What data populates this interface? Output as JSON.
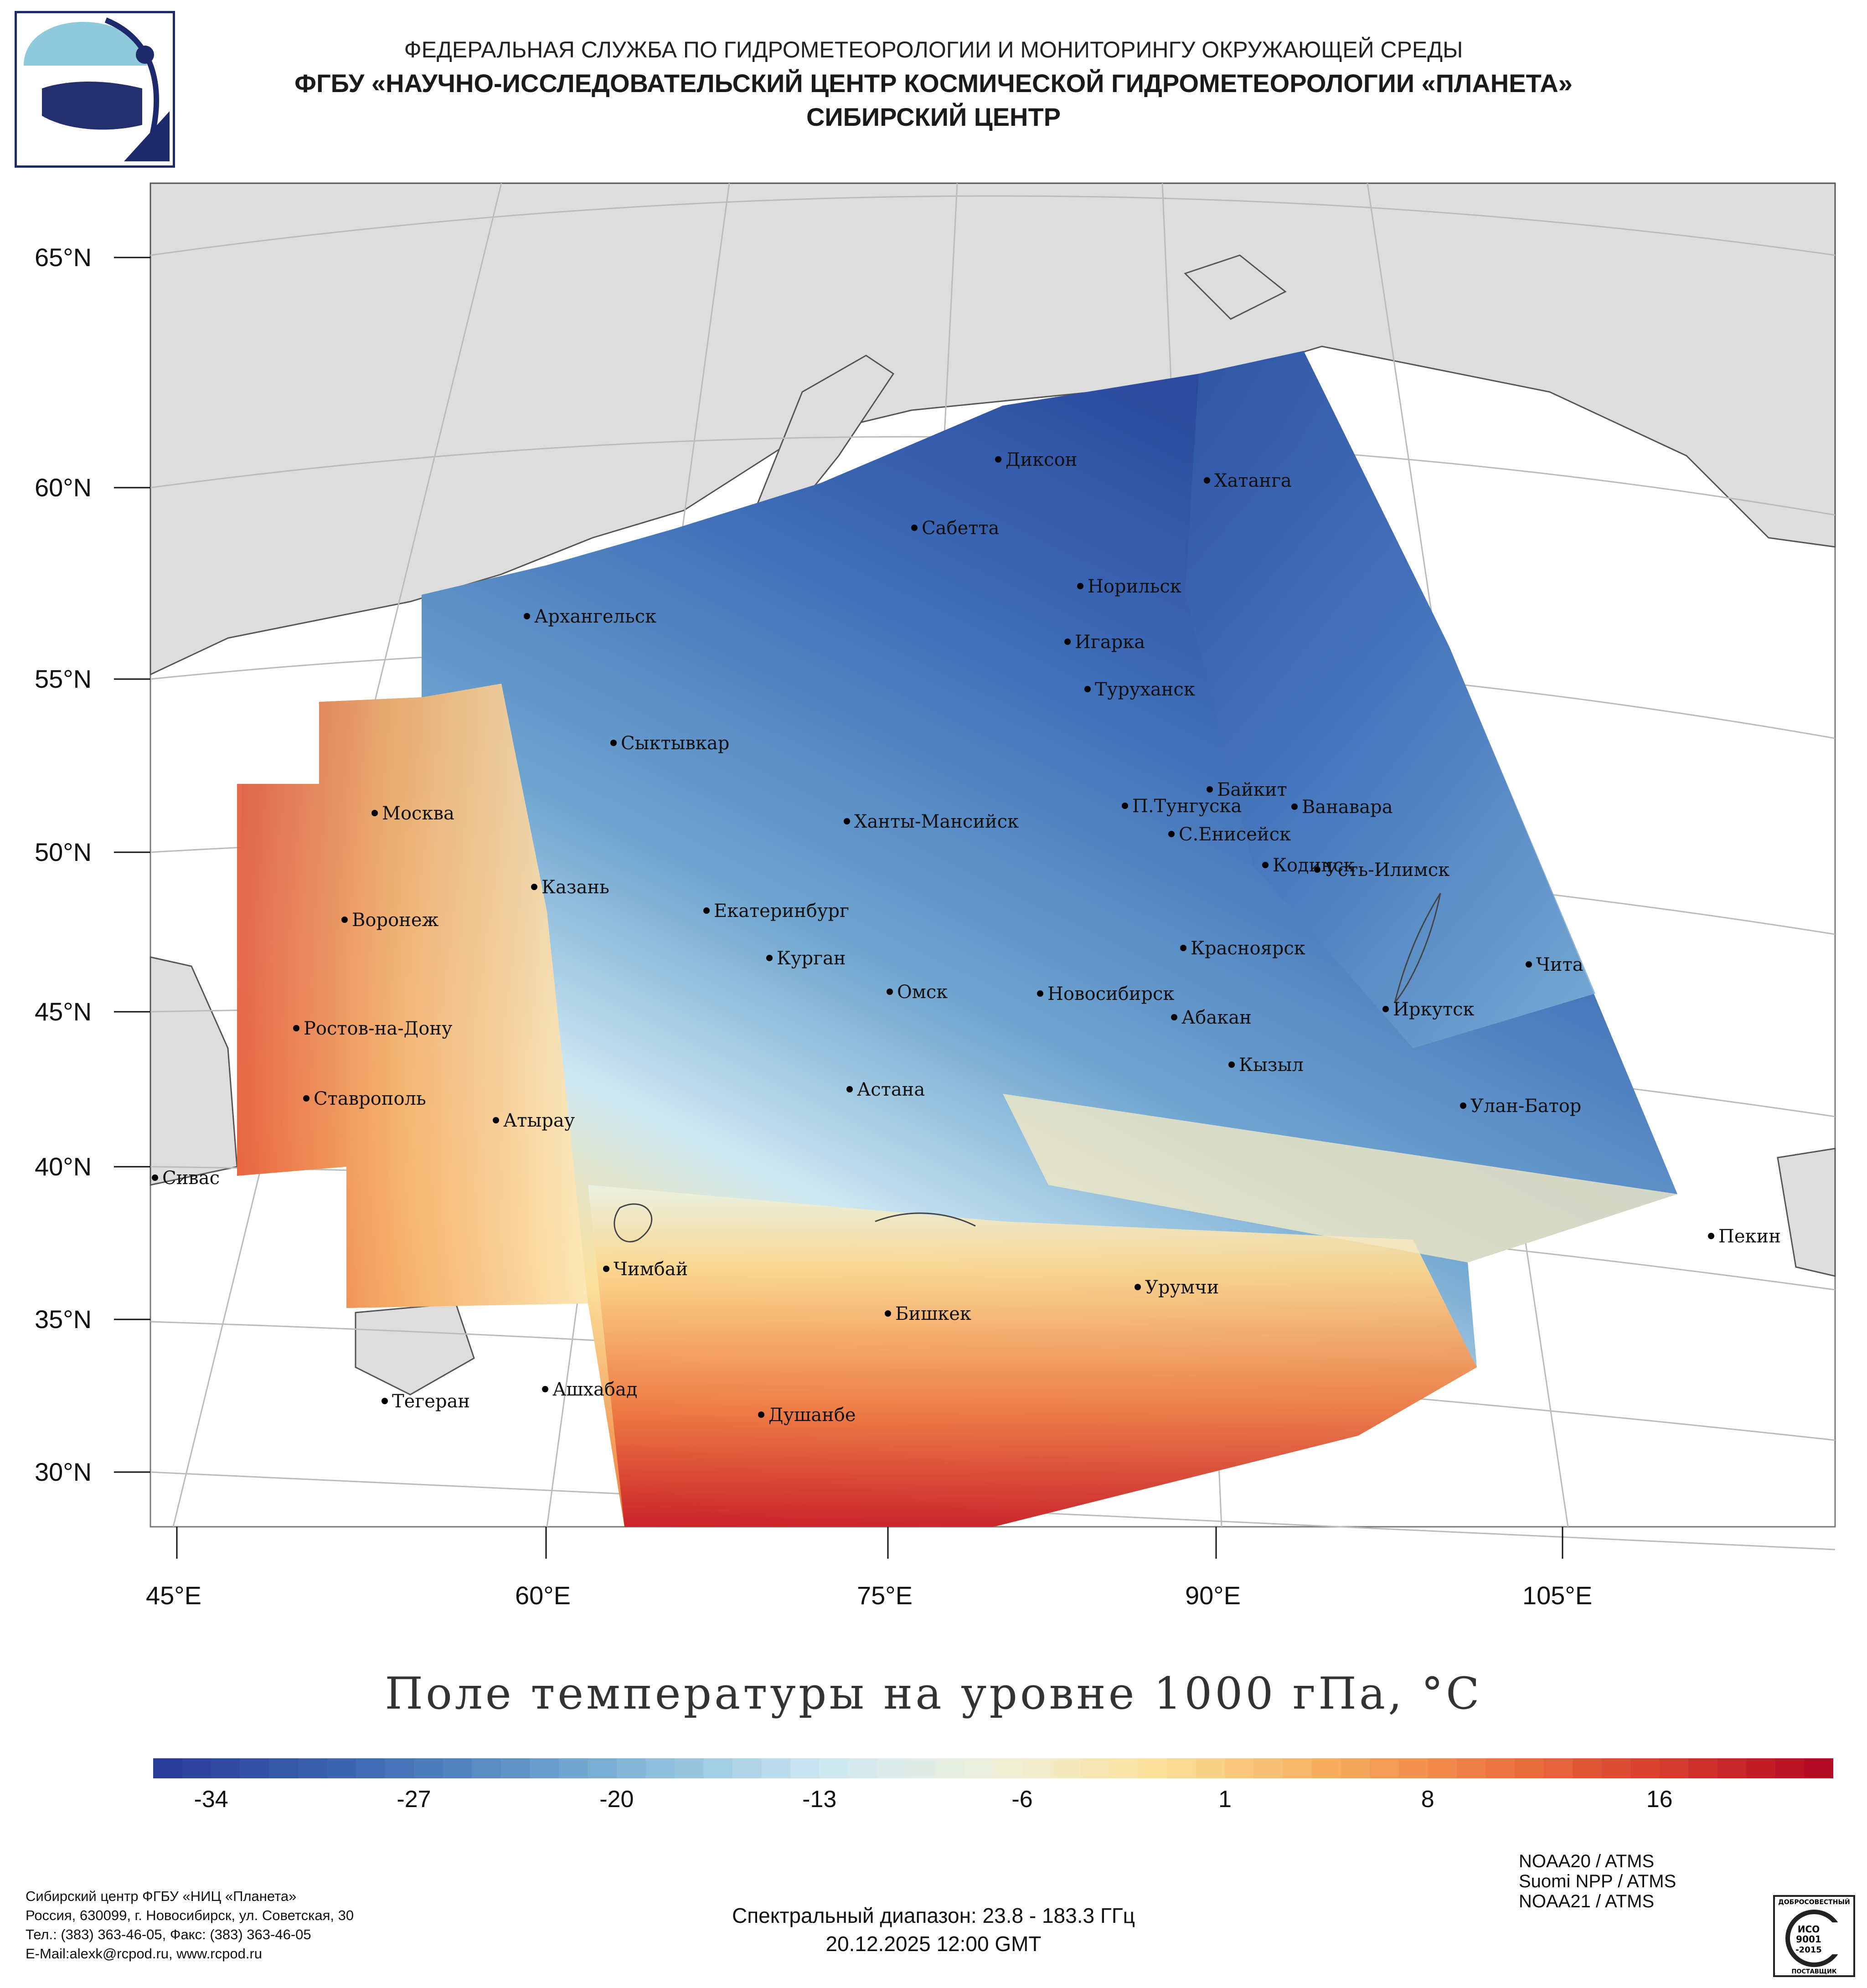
{
  "header": {
    "line1": "ФЕДЕРАЛЬНАЯ СЛУЖБА ПО ГИДРОМЕТЕОРОЛОГИИ И МОНИТОРИНГУ ОКРУЖАЮЩЕЙ СРЕДЫ",
    "line2": "ФГБУ «НАУЧНО-ИССЛЕДОВАТЕЛЬСКИЙ ЦЕНТР КОСМИЧЕСКОЙ ГИДРОМЕТЕОРОЛОГИИ «ПЛАНЕТА»",
    "line3": "СИБИРСКИЙ ЦЕНТР"
  },
  "map": {
    "lat_labels": [
      "65°N",
      "60°N",
      "55°N",
      "50°N",
      "45°N",
      "40°N",
      "35°N",
      "30°N"
    ],
    "lon_labels": [
      "45°E",
      "60°E",
      "75°E",
      "90°E",
      "105°E"
    ],
    "cities": [
      {
        "name": "Диксон"
      },
      {
        "name": "Хатанга"
      },
      {
        "name": "Сабетта"
      },
      {
        "name": "Норильск"
      },
      {
        "name": "Архангельск"
      },
      {
        "name": "Игарка"
      },
      {
        "name": "Туруханск"
      },
      {
        "name": "Сыктывкар"
      },
      {
        "name": "Байкит"
      },
      {
        "name": "Москва"
      },
      {
        "name": "П.Тунгуска"
      },
      {
        "name": "Ванавара"
      },
      {
        "name": "Ханты-Мансийск"
      },
      {
        "name": "С.Енисейск"
      },
      {
        "name": "Кодинск"
      },
      {
        "name": "Усть-Илимск"
      },
      {
        "name": "Казань"
      },
      {
        "name": "Екатеринбург"
      },
      {
        "name": "Воронеж"
      },
      {
        "name": "Красноярск"
      },
      {
        "name": "Курган"
      },
      {
        "name": "Чита"
      },
      {
        "name": "Омск"
      },
      {
        "name": "Новосибирск"
      },
      {
        "name": "Иркутск"
      },
      {
        "name": "Абакан"
      },
      {
        "name": "Ростов-на-Дону"
      },
      {
        "name": "Кызыл"
      },
      {
        "name": "Астана"
      },
      {
        "name": "Ставрополь"
      },
      {
        "name": "Улан-Батор"
      },
      {
        "name": "Атырау"
      },
      {
        "name": "Сивас"
      },
      {
        "name": "Пекин"
      },
      {
        "name": "Чимбай"
      },
      {
        "name": "Урумчи"
      },
      {
        "name": "Бишкек"
      },
      {
        "name": "Ашхабад"
      },
      {
        "name": "Тегеран"
      },
      {
        "name": "Душанбе"
      }
    ]
  },
  "colorbar": {
    "title": "Поле температуры на уровне 1000 гПа, °C",
    "ticks": [
      "-34",
      "-27",
      "-20",
      "-13",
      "-6",
      "1",
      "8",
      "16"
    ],
    "min": -36,
    "max": 22,
    "colors": [
      "#2b3d9a",
      "#3a63b0",
      "#5a8fc4",
      "#8fc0dc",
      "#cfe9f2",
      "#eef0dc",
      "#fbe09a",
      "#f7b060",
      "#ee7a42",
      "#d8402e",
      "#b40c24"
    ]
  },
  "footer": {
    "org_lines": [
      "Сибирский центр ФГБУ «НИЦ «Планета»",
      "Россия, 630099, г. Новосибирск, ул. Советская, 30",
      "Тел.: (383) 363-46-05, Факс: (383) 363-46-05",
      "E-Mail:alexk@rcpod.ru, www.rcpod.ru"
    ],
    "spectral": "Спектральный диапазон: 23.8 - 183.3 ГГц",
    "datetime": "20.12.2025 12:00 GMT",
    "instruments": [
      "NOAA20 / ATMS",
      "Suomi NPP / ATMS",
      "NOAA21 / ATMS"
    ],
    "iso_badge": [
      "ДОБРОСОВЕСТНЫЙ",
      "ИСО",
      "9001",
      "-2015",
      "ПОСТАВЩИК"
    ]
  }
}
